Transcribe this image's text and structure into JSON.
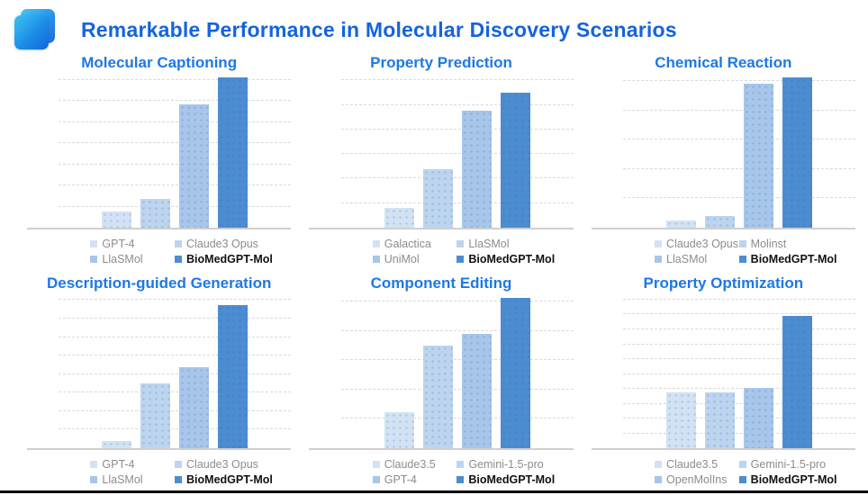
{
  "page": {
    "title": "Remarkable Performance in Molecular Discovery Scenarios"
  },
  "colors": {
    "series": [
      "#d2e2f4",
      "#bcd4ee",
      "#a7c6e9",
      "#4c8cd1"
    ],
    "main_title": "#1464dc",
    "chart_title": "#1e78e6",
    "legend_text": "#8c8c8c",
    "highlight_text": "#111111",
    "gridline": "#dadada",
    "logo_gradient_start": "#3fc3f2",
    "logo_gradient_end": "#1565d8"
  },
  "chart_data": [
    {
      "type": "bar",
      "title": "Molecular Captioning",
      "categories": [
        "GPT-4",
        "Claude3 Opus",
        "LlaSMol",
        "BioMedGPT-Mol"
      ],
      "values": [
        0.11,
        0.19,
        0.82,
        1.0
      ],
      "xlabel": "",
      "ylabel": "",
      "ylim": [
        0,
        1
      ],
      "gridline_count": 7,
      "grid": true,
      "legend_position": "bottom",
      "note": "no numeric axis labels shown; values are relative bar heights"
    },
    {
      "type": "bar",
      "title": "Property Prediction",
      "categories": [
        "Galactica",
        "LlaSMol",
        "UniMol",
        "BioMedGPT-Mol"
      ],
      "values": [
        0.13,
        0.39,
        0.78,
        0.9
      ],
      "xlabel": "",
      "ylabel": "",
      "ylim": [
        0,
        1
      ],
      "gridline_count": 6,
      "grid": true,
      "legend_position": "bottom",
      "note": "no numeric axis labels shown; values are relative bar heights"
    },
    {
      "type": "bar",
      "title": "Chemical Reaction",
      "categories": [
        "Claude3 Opus",
        "Molinst",
        "LlaSMol",
        "BioMedGPT-Mol"
      ],
      "values": [
        0.05,
        0.08,
        0.96,
        1.0
      ],
      "xlabel": "",
      "ylabel": "",
      "ylim": [
        0,
        1
      ],
      "gridline_count": 5,
      "grid": true,
      "legend_position": "bottom",
      "note": "no numeric axis labels shown; values are relative bar heights"
    },
    {
      "type": "bar",
      "title": "Description-guided Generation",
      "categories": [
        "GPT-4",
        "Claude3 Opus",
        "LlaSMol",
        "BioMedGPT-Mol"
      ],
      "values": [
        0.05,
        0.43,
        0.54,
        0.95
      ],
      "xlabel": "",
      "ylabel": "",
      "ylim": [
        0,
        1
      ],
      "gridline_count": 8,
      "grid": true,
      "legend_position": "bottom",
      "note": "no numeric axis labels shown; values are relative bar heights"
    },
    {
      "type": "bar",
      "title": "Component Editing",
      "categories": [
        "Claude3.5",
        "Gemini-1.5-pro",
        "GPT-4",
        "BioMedGPT-Mol"
      ],
      "values": [
        0.24,
        0.68,
        0.76,
        1.0
      ],
      "xlabel": "",
      "ylabel": "",
      "ylim": [
        0,
        1
      ],
      "gridline_count": 5,
      "grid": true,
      "legend_position": "bottom",
      "note": "no numeric axis labels shown; values are relative bar heights"
    },
    {
      "type": "bar",
      "title": "Property Optimization",
      "categories": [
        "Claude3.5",
        "Gemini-1.5-pro",
        "OpenMolIns",
        "BioMedGPT-Mol"
      ],
      "values": [
        0.37,
        0.37,
        0.4,
        0.88
      ],
      "xlabel": "",
      "ylabel": "",
      "ylim": [
        0,
        1
      ],
      "gridline_count": 10,
      "grid": true,
      "legend_position": "bottom",
      "note": "no numeric axis labels shown; values are relative bar heights"
    }
  ]
}
